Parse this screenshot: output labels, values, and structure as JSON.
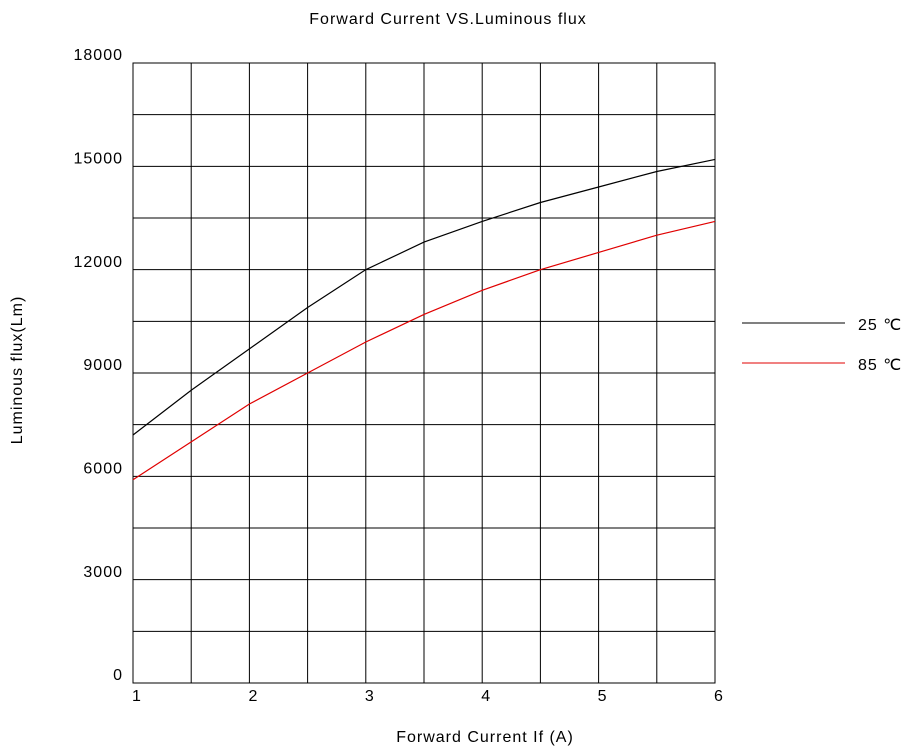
{
  "chart_data": {
    "type": "line",
    "title": "Forward Current VS.Luminous flux",
    "x_label": "Forward Current  If (A)",
    "y_label": "Luminous flux(Lm)",
    "x": [
      1,
      1.5,
      2,
      2.5,
      3,
      3.5,
      4,
      4.5,
      5,
      5.5,
      6
    ],
    "series": [
      {
        "name": "25 ℃",
        "color": "#000000",
        "values": [
          7200,
          8500,
          9700,
          10900,
          12000,
          12800,
          13400,
          13950,
          14400,
          14850,
          15200
        ]
      },
      {
        "name": "85 ℃",
        "color": "#e00000",
        "values": [
          5900,
          7000,
          8100,
          9000,
          9900,
          10700,
          11400,
          12000,
          12500,
          13000,
          13400
        ]
      }
    ],
    "xlim": [
      1,
      6
    ],
    "xticks": [
      1,
      2,
      3,
      4,
      5,
      6
    ],
    "ylim": [
      0,
      18000
    ],
    "yticks": [
      0,
      3000,
      6000,
      9000,
      12000,
      15000,
      18000
    ],
    "grid": true
  }
}
